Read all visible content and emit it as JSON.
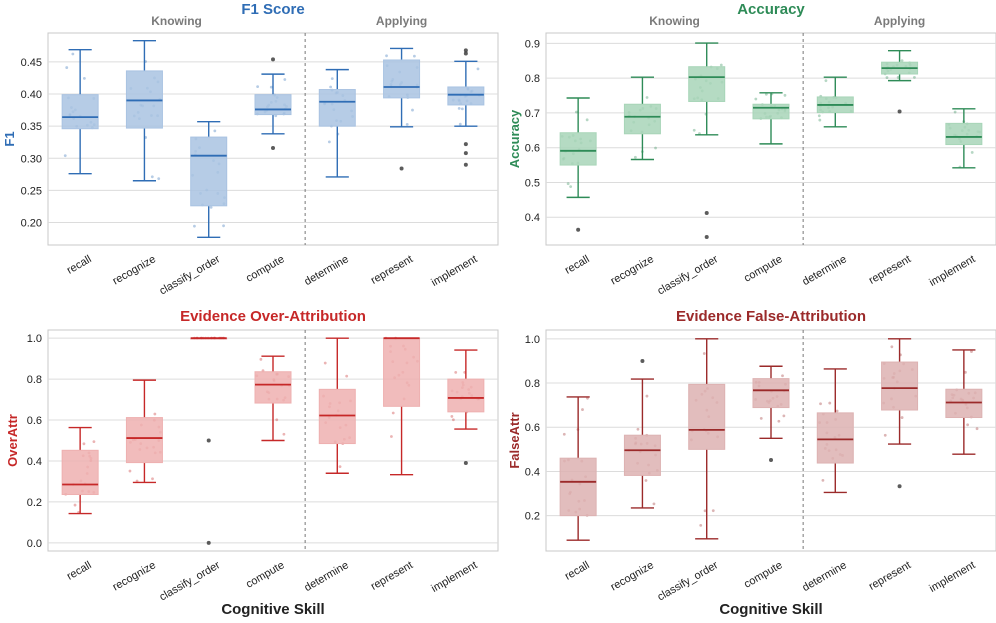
{
  "chart_data": [
    {
      "type": "box",
      "title": "F1 Score",
      "ylabel": "F1",
      "xlabel": "",
      "color": "#2f6db5",
      "fill": "#a9c3e2",
      "ylim": [
        0.165,
        0.495
      ],
      "yticks": [
        0.2,
        0.25,
        0.3,
        0.35,
        0.4,
        0.45
      ],
      "ytick_labels": [
        "0.20",
        "0.25",
        "0.30",
        "0.35",
        "0.40",
        "0.45"
      ],
      "groups": [
        {
          "label": "Knowing",
          "span": [
            0,
            3
          ]
        },
        {
          "label": "Applying",
          "span": [
            4,
            6
          ]
        }
      ],
      "categories": [
        "recall",
        "recognize",
        "classify_order",
        "compute",
        "determine",
        "represent",
        "implement"
      ],
      "boxes": [
        {
          "whislo": 0.276,
          "q1": 0.346,
          "med": 0.364,
          "q3": 0.399,
          "whishi": 0.469,
          "fliers": []
        },
        {
          "whislo": 0.265,
          "q1": 0.347,
          "med": 0.39,
          "q3": 0.436,
          "whishi": 0.483,
          "fliers": []
        },
        {
          "whislo": 0.177,
          "q1": 0.226,
          "med": 0.304,
          "q3": 0.333,
          "whishi": 0.357,
          "fliers": []
        },
        {
          "whislo": 0.338,
          "q1": 0.368,
          "med": 0.376,
          "q3": 0.399,
          "whishi": 0.431,
          "fliers": [
            0.316,
            0.454
          ]
        },
        {
          "whislo": 0.271,
          "q1": 0.35,
          "med": 0.388,
          "q3": 0.407,
          "whishi": 0.438,
          "fliers": []
        },
        {
          "whislo": 0.349,
          "q1": 0.394,
          "med": 0.411,
          "q3": 0.453,
          "whishi": 0.471,
          "fliers": [
            0.284
          ]
        },
        {
          "whislo": 0.35,
          "q1": 0.383,
          "med": 0.399,
          "q3": 0.411,
          "whishi": 0.451,
          "fliers": [
            0.29,
            0.308,
            0.322,
            0.463,
            0.468
          ]
        }
      ]
    },
    {
      "type": "box",
      "title": "Accuracy",
      "ylabel": "Accuracy",
      "xlabel": "",
      "color": "#2e8b57",
      "fill": "#a8d5b8",
      "ylim": [
        0.32,
        0.93
      ],
      "yticks": [
        0.4,
        0.5,
        0.6,
        0.7,
        0.8,
        0.9
      ],
      "ytick_labels": [
        "0.4",
        "0.5",
        "0.6",
        "0.7",
        "0.8",
        "0.9"
      ],
      "groups": [
        {
          "label": "Knowing",
          "span": [
            0,
            3
          ]
        },
        {
          "label": "Applying",
          "span": [
            4,
            6
          ]
        }
      ],
      "categories": [
        "recall",
        "recognize",
        "classify_order",
        "compute",
        "determine",
        "represent",
        "implement"
      ],
      "boxes": [
        {
          "whislo": 0.457,
          "q1": 0.55,
          "med": 0.591,
          "q3": 0.643,
          "whishi": 0.743,
          "fliers": [
            0.364
          ]
        },
        {
          "whislo": 0.566,
          "q1": 0.64,
          "med": 0.689,
          "q3": 0.725,
          "whishi": 0.803,
          "fliers": []
        },
        {
          "whislo": 0.637,
          "q1": 0.733,
          "med": 0.803,
          "q3": 0.833,
          "whishi": 0.901,
          "fliers": [
            0.343,
            0.412
          ]
        },
        {
          "whislo": 0.611,
          "q1": 0.683,
          "med": 0.715,
          "q3": 0.725,
          "whishi": 0.758,
          "fliers": []
        },
        {
          "whislo": 0.66,
          "q1": 0.701,
          "med": 0.723,
          "q3": 0.746,
          "whishi": 0.803,
          "fliers": []
        },
        {
          "whislo": 0.793,
          "q1": 0.812,
          "med": 0.829,
          "q3": 0.846,
          "whishi": 0.879,
          "fliers": [
            0.704
          ]
        },
        {
          "whislo": 0.542,
          "q1": 0.609,
          "med": 0.631,
          "q3": 0.67,
          "whishi": 0.712,
          "fliers": []
        }
      ]
    },
    {
      "type": "box",
      "title": "Evidence Over-Attribution",
      "ylabel": "OverAttr",
      "xlabel": "Cognitive Skill",
      "color": "#c62828",
      "fill": "#eeb0b0",
      "ylim": [
        -0.04,
        1.04
      ],
      "yticks": [
        0.0,
        0.2,
        0.4,
        0.6,
        0.8,
        1.0
      ],
      "ytick_labels": [
        "0.0",
        "0.2",
        "0.4",
        "0.6",
        "0.8",
        "1.0"
      ],
      "groups": [],
      "categories": [
        "recall",
        "recognize",
        "classify_order",
        "compute",
        "determine",
        "represent",
        "implement"
      ],
      "boxes": [
        {
          "whislo": 0.143,
          "q1": 0.236,
          "med": 0.285,
          "q3": 0.452,
          "whishi": 0.563,
          "fliers": []
        },
        {
          "whislo": 0.295,
          "q1": 0.392,
          "med": 0.512,
          "q3": 0.612,
          "whishi": 0.795,
          "fliers": []
        },
        {
          "whislo": 1.0,
          "q1": 1.0,
          "med": 1.0,
          "q3": 1.0,
          "whishi": 1.0,
          "fliers": [
            0.0,
            0.5
          ]
        },
        {
          "whislo": 0.5,
          "q1": 0.683,
          "med": 0.773,
          "q3": 0.836,
          "whishi": 0.912,
          "fliers": []
        },
        {
          "whislo": 0.34,
          "q1": 0.485,
          "med": 0.622,
          "q3": 0.75,
          "whishi": 1.0,
          "fliers": []
        },
        {
          "whislo": 0.333,
          "q1": 0.667,
          "med": 1.0,
          "q3": 1.0,
          "whishi": 1.0,
          "fliers": []
        },
        {
          "whislo": 0.556,
          "q1": 0.64,
          "med": 0.708,
          "q3": 0.8,
          "whishi": 0.942,
          "fliers": [
            0.39
          ]
        }
      ]
    },
    {
      "type": "box",
      "title": "Evidence False-Attribution",
      "ylabel": "FalseAttr",
      "xlabel": "Cognitive Skill",
      "color": "#9b2a2a",
      "fill": "#ddb2b2",
      "ylim": [
        0.04,
        1.04
      ],
      "yticks": [
        0.2,
        0.4,
        0.6,
        0.8,
        1.0
      ],
      "ytick_labels": [
        "0.2",
        "0.4",
        "0.6",
        "0.8",
        "1.0"
      ],
      "groups": [],
      "categories": [
        "recall",
        "recognize",
        "classify_order",
        "compute",
        "determine",
        "represent",
        "implement"
      ],
      "boxes": [
        {
          "whislo": 0.089,
          "q1": 0.2,
          "med": 0.353,
          "q3": 0.46,
          "whishi": 0.737,
          "fliers": []
        },
        {
          "whislo": 0.235,
          "q1": 0.382,
          "med": 0.496,
          "q3": 0.564,
          "whishi": 0.818,
          "fliers": [
            0.9
          ]
        },
        {
          "whislo": 0.095,
          "q1": 0.5,
          "med": 0.588,
          "q3": 0.794,
          "whishi": 1.0,
          "fliers": []
        },
        {
          "whislo": 0.55,
          "q1": 0.689,
          "med": 0.767,
          "q3": 0.82,
          "whishi": 0.876,
          "fliers": [
            0.452
          ]
        },
        {
          "whislo": 0.305,
          "q1": 0.438,
          "med": 0.545,
          "q3": 0.665,
          "whishi": 0.864,
          "fliers": []
        },
        {
          "whislo": 0.524,
          "q1": 0.678,
          "med": 0.777,
          "q3": 0.895,
          "whishi": 1.0,
          "fliers": [
            0.333
          ]
        },
        {
          "whislo": 0.478,
          "q1": 0.644,
          "med": 0.712,
          "q3": 0.772,
          "whishi": 0.95,
          "fliers": []
        }
      ]
    }
  ]
}
